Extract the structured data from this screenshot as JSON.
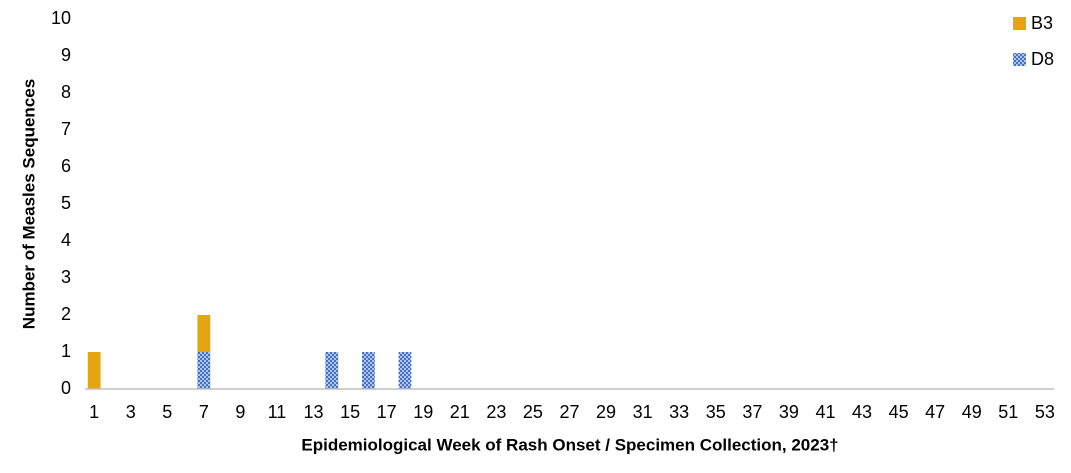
{
  "chart_data": {
    "type": "stacked_bar",
    "x_label": "Epidemiological Week of Rash Onset / Specimen Collection, 2023†",
    "y_label": "Number of Measles Sequences",
    "categories": [
      "1",
      null,
      "3",
      null,
      "5",
      null,
      "7",
      null,
      "9",
      null,
      "11",
      null,
      "13",
      null,
      "15",
      null,
      "17",
      null,
      "19",
      null,
      "21",
      null,
      "23",
      null,
      "25",
      null,
      "27",
      null,
      "29",
      null,
      "31",
      null,
      "33",
      null,
      "35",
      null,
      "37",
      null,
      "39",
      null,
      "41",
      null,
      "43",
      null,
      "45",
      null,
      "47",
      null,
      "49",
      null,
      "51",
      null,
      "53"
    ],
    "series": [
      {
        "name": "D8",
        "color": "#4472c4",
        "pattern": "dots",
        "values": [
          0,
          0,
          0,
          0,
          0,
          0,
          1,
          0,
          0,
          0,
          0,
          0,
          0,
          1,
          0,
          1,
          0,
          1,
          0,
          0,
          0,
          0,
          0,
          0,
          0,
          0,
          0,
          0,
          0,
          0,
          0,
          0,
          0,
          0,
          0,
          0,
          0,
          0,
          0,
          0,
          0,
          0,
          0,
          0,
          0,
          0,
          0,
          0,
          0,
          0,
          0,
          0,
          0
        ]
      },
      {
        "name": "B3",
        "color": "#e5a50f",
        "values": [
          1,
          0,
          0,
          0,
          0,
          0,
          1,
          0,
          0,
          0,
          0,
          0,
          0,
          0,
          0,
          0,
          0,
          0,
          0,
          0,
          0,
          0,
          0,
          0,
          0,
          0,
          0,
          0,
          0,
          0,
          0,
          0,
          0,
          0,
          0,
          0,
          0,
          0,
          0,
          0,
          0,
          0,
          0,
          0,
          0,
          0,
          0,
          0,
          0,
          0,
          0,
          0,
          0
        ]
      }
    ],
    "legend_order": [
      "B3",
      "D8"
    ],
    "legend": "top-right",
    "ylim": [
      0,
      10
    ],
    "yticks": [
      0,
      1,
      2,
      3,
      4,
      5,
      6,
      7,
      8,
      9,
      10
    ],
    "grid": false
  }
}
